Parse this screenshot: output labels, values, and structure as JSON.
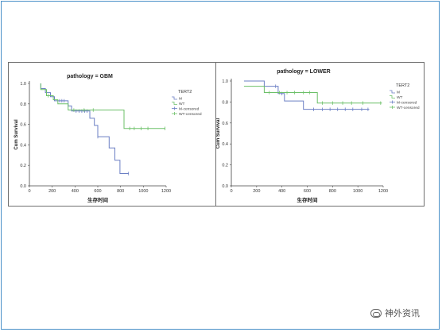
{
  "watermark": {
    "text": "神外资讯",
    "icon": "wechat-icon"
  },
  "chart_data": [
    {
      "type": "line",
      "step": true,
      "title": "pathology = GBM",
      "xlabel": "生存时间",
      "ylabel": "Cum Survival",
      "xlim": [
        0,
        1200
      ],
      "ylim": [
        0,
        1.0
      ],
      "xticks": [
        0,
        200,
        400,
        600,
        800,
        1000,
        1200
      ],
      "yticks": [
        0.0,
        0.2,
        0.4,
        0.6,
        0.8,
        1.0
      ],
      "legend_title": "TERT2",
      "legend_placement": "right",
      "legend": [
        "M",
        "WT",
        "M-censored",
        "WT-censored"
      ],
      "series": [
        {
          "name": "M",
          "color": "#6b7fc4",
          "points": [
            [
              100,
              1.0
            ],
            [
              100,
              0.95
            ],
            [
              140,
              0.95
            ],
            [
              140,
              0.91
            ],
            [
              185,
              0.91
            ],
            [
              185,
              0.87
            ],
            [
              220,
              0.87
            ],
            [
              220,
              0.83
            ],
            [
              340,
              0.83
            ],
            [
              340,
              0.78
            ],
            [
              370,
              0.78
            ],
            [
              370,
              0.73
            ],
            [
              530,
              0.73
            ],
            [
              530,
              0.66
            ],
            [
              570,
              0.66
            ],
            [
              570,
              0.59
            ],
            [
              600,
              0.59
            ],
            [
              600,
              0.48
            ],
            [
              700,
              0.48
            ],
            [
              700,
              0.37
            ],
            [
              750,
              0.37
            ],
            [
              750,
              0.25
            ],
            [
              795,
              0.25
            ],
            [
              795,
              0.12
            ],
            [
              870,
              0.12
            ]
          ],
          "censored": [
            [
              265,
              0.83
            ],
            [
              285,
              0.83
            ],
            [
              305,
              0.83
            ],
            [
              410,
              0.73
            ],
            [
              435,
              0.73
            ],
            [
              460,
              0.73
            ],
            [
              485,
              0.73
            ],
            [
              505,
              0.73
            ],
            [
              600,
              0.48
            ],
            [
              870,
              0.12
            ]
          ]
        },
        {
          "name": "WT",
          "color": "#6cc068",
          "points": [
            [
              100,
              1.0
            ],
            [
              100,
              0.94
            ],
            [
              150,
              0.94
            ],
            [
              150,
              0.88
            ],
            [
              210,
              0.88
            ],
            [
              210,
              0.84
            ],
            [
              250,
              0.84
            ],
            [
              250,
              0.8
            ],
            [
              340,
              0.8
            ],
            [
              340,
              0.74
            ],
            [
              630,
              0.74
            ],
            [
              630,
              0.74
            ],
            [
              830,
              0.74
            ],
            [
              830,
              0.56
            ],
            [
              1190,
              0.56
            ]
          ],
          "censored": [
            [
              165,
              0.88
            ],
            [
              390,
              0.74
            ],
            [
              480,
              0.74
            ],
            [
              560,
              0.74
            ],
            [
              880,
              0.56
            ],
            [
              920,
              0.56
            ],
            [
              980,
              0.56
            ],
            [
              1040,
              0.56
            ],
            [
              1190,
              0.56
            ]
          ]
        }
      ]
    },
    {
      "type": "line",
      "step": true,
      "title": "pathology = LOWER",
      "xlabel": "生存时间",
      "ylabel": "Cum Survival",
      "xlim": [
        0,
        1200
      ],
      "ylim": [
        0,
        1.0
      ],
      "xticks": [
        0,
        200,
        400,
        600,
        800,
        1000,
        1200
      ],
      "yticks": [
        0.0,
        0.2,
        0.4,
        0.6,
        0.8,
        1.0
      ],
      "legend_title": "TERT2",
      "legend_placement": "right",
      "legend": [
        "M",
        "WT",
        "M-censored",
        "WT-censored"
      ],
      "series": [
        {
          "name": "M",
          "color": "#6b7fc4",
          "points": [
            [
              100,
              1.0
            ],
            [
              260,
              1.0
            ],
            [
              260,
              0.95
            ],
            [
              370,
              0.95
            ],
            [
              370,
              0.88
            ],
            [
              420,
              0.88
            ],
            [
              420,
              0.81
            ],
            [
              570,
              0.81
            ],
            [
              570,
              0.73
            ],
            [
              1090,
              0.73
            ]
          ],
          "censored": [
            [
              350,
              0.95
            ],
            [
              400,
              0.88
            ],
            [
              650,
              0.73
            ],
            [
              720,
              0.73
            ],
            [
              780,
              0.73
            ],
            [
              840,
              0.73
            ],
            [
              900,
              0.73
            ],
            [
              960,
              0.73
            ],
            [
              1030,
              0.73
            ],
            [
              1080,
              0.73
            ]
          ]
        },
        {
          "name": "WT",
          "color": "#6cc068",
          "points": [
            [
              100,
              0.95
            ],
            [
              260,
              0.95
            ],
            [
              260,
              0.89
            ],
            [
              680,
              0.89
            ],
            [
              680,
              0.79
            ],
            [
              1190,
              0.79
            ]
          ],
          "censored": [
            [
              300,
              0.89
            ],
            [
              380,
              0.89
            ],
            [
              440,
              0.89
            ],
            [
              500,
              0.89
            ],
            [
              570,
              0.89
            ],
            [
              620,
              0.89
            ],
            [
              720,
              0.79
            ],
            [
              800,
              0.79
            ],
            [
              880,
              0.79
            ],
            [
              950,
              0.79
            ],
            [
              1040,
              0.79
            ],
            [
              1180,
              0.79
            ]
          ]
        }
      ]
    }
  ]
}
